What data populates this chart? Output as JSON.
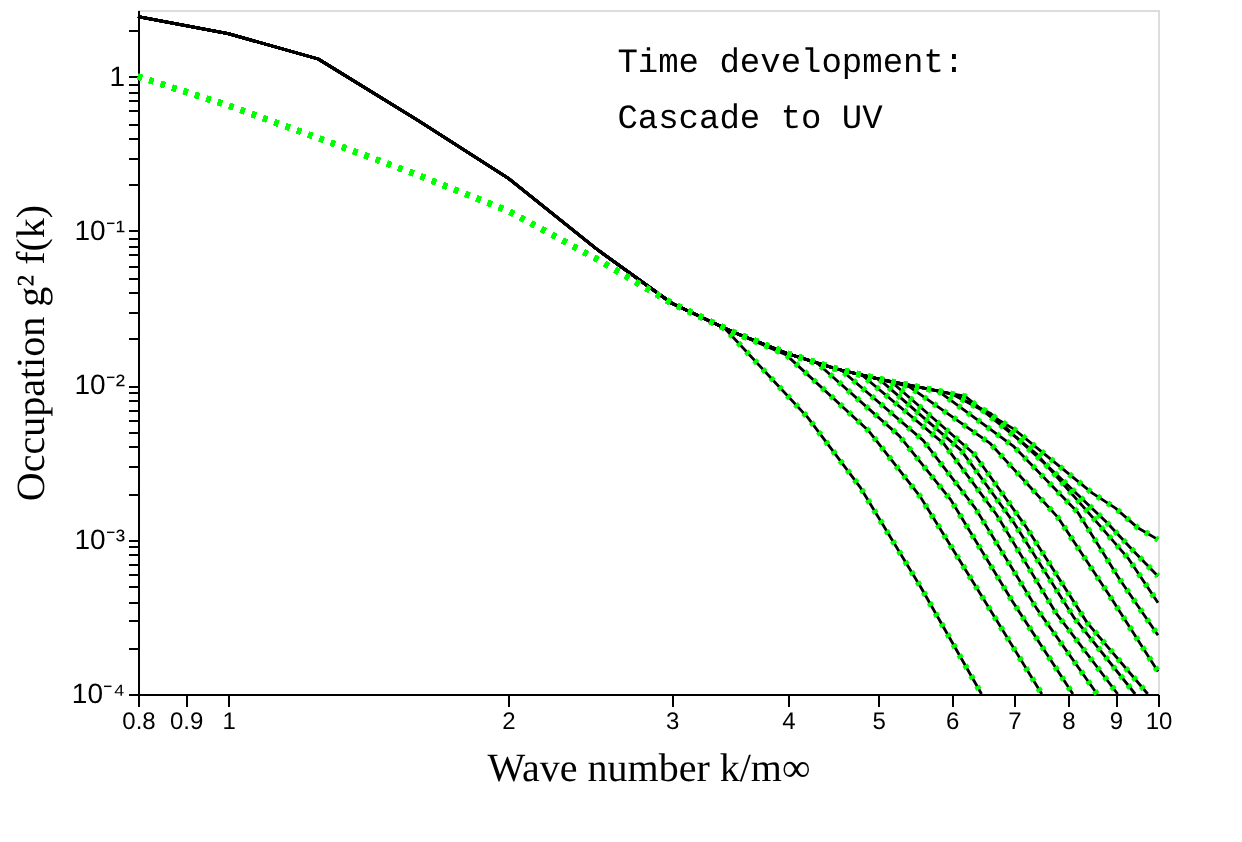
{
  "chart_data": {
    "type": "line",
    "xlabel": "Wave number k/m∞",
    "ylabel": "Occupation g² f(k)",
    "annotations": [
      "Time development:",
      "Cascade to UV"
    ],
    "log": "xy",
    "grid": false,
    "marker": "none",
    "xlim": [
      0.8,
      10
    ],
    "ylim": [
      0.0001,
      2.7
    ],
    "xticks": [
      0.8,
      0.9,
      1,
      2,
      3,
      4,
      5,
      6,
      7,
      8,
      9,
      10
    ],
    "yticks": [
      {
        "value": 0.0001,
        "label": "10⁻⁴"
      },
      {
        "value": 0.0002,
        "label": null
      },
      {
        "value": 0.0003,
        "label": null
      },
      {
        "value": 0.0004,
        "label": null
      },
      {
        "value": 0.0005,
        "label": null
      },
      {
        "value": 0.0006,
        "label": null
      },
      {
        "value": 0.0007,
        "label": null
      },
      {
        "value": 0.0008,
        "label": null
      },
      {
        "value": 0.0009,
        "label": null
      },
      {
        "value": 0.001,
        "label": "10⁻³"
      },
      {
        "value": 0.002,
        "label": null
      },
      {
        "value": 0.003,
        "label": null
      },
      {
        "value": 0.004,
        "label": null
      },
      {
        "value": 0.005,
        "label": null
      },
      {
        "value": 0.006,
        "label": null
      },
      {
        "value": 0.007,
        "label": null
      },
      {
        "value": 0.008,
        "label": null
      },
      {
        "value": 0.009,
        "label": null
      },
      {
        "value": 0.01,
        "label": "10⁻²"
      },
      {
        "value": 0.02,
        "label": null
      },
      {
        "value": 0.03,
        "label": null
      },
      {
        "value": 0.04,
        "label": null
      },
      {
        "value": 0.05,
        "label": null
      },
      {
        "value": 0.06,
        "label": null
      },
      {
        "value": 0.07,
        "label": null
      },
      {
        "value": 0.08,
        "label": null
      },
      {
        "value": 0.09,
        "label": null
      },
      {
        "value": 0.1,
        "label": "10⁻¹"
      },
      {
        "value": 0.2,
        "label": null
      },
      {
        "value": 0.3,
        "label": null
      },
      {
        "value": 0.4,
        "label": null
      },
      {
        "value": 0.5,
        "label": null
      },
      {
        "value": 0.6,
        "label": null
      },
      {
        "value": 0.7,
        "label": null
      },
      {
        "value": 0.8,
        "label": null
      },
      {
        "value": 0.9,
        "label": null
      },
      1,
      {
        "value": 2,
        "label": null
      }
    ],
    "series": [
      {
        "color": "#000000",
        "line_style": "solid",
        "x": [
          0.8,
          1,
          1.25,
          1.6,
          2,
          2.5,
          3,
          3.42,
          4.2,
          4.78,
          5.56,
          6.46
        ],
        "values": [
          2.45,
          1.9,
          1.3,
          0.52,
          0.22,
          0.075,
          0.034,
          0.0234,
          0.0062,
          0.0022,
          0.00049,
          0.0001
        ]
      },
      {
        "color": "#000000",
        "line_style": "solid",
        "x": [
          0.8,
          1,
          1.25,
          1.6,
          2,
          2.5,
          3,
          3.5,
          3.98,
          4.88,
          5.55,
          6.45,
          7.5
        ],
        "values": [
          2.45,
          1.9,
          1.3,
          0.52,
          0.22,
          0.075,
          0.034,
          0.022,
          0.0158,
          0.0051,
          0.0019,
          0.00044,
          0.0001
        ]
      },
      {
        "color": "#000000",
        "line_style": "solid",
        "x": [
          0.8,
          1,
          1.25,
          1.6,
          2,
          2.5,
          3,
          3.5,
          4,
          4.29,
          5.27,
          5.99,
          6.97,
          8.1
        ],
        "values": [
          2.45,
          1.9,
          1.3,
          0.52,
          0.22,
          0.075,
          0.034,
          0.022,
          0.016,
          0.0141,
          0.0047,
          0.0018,
          0.0004,
          0.0001
        ]
      },
      {
        "color": "#000000",
        "line_style": "solid",
        "x": [
          0.8,
          1,
          1.25,
          1.6,
          2,
          2.5,
          3,
          3.5,
          4,
          4.56,
          5.59,
          6.36,
          7.4,
          8.6
        ],
        "values": [
          2.45,
          1.9,
          1.3,
          0.52,
          0.22,
          0.075,
          0.034,
          0.022,
          0.016,
          0.0126,
          0.0044,
          0.0016,
          0.00036,
          0.0001
        ]
      },
      {
        "color": "#000000",
        "line_style": "solid",
        "x": [
          0.8,
          1,
          1.25,
          1.6,
          2,
          2.5,
          3,
          3.5,
          4,
          4.5,
          4.8,
          5.88,
          6.7,
          7.78,
          9.05
        ],
        "values": [
          2.45,
          1.9,
          1.3,
          0.52,
          0.22,
          0.075,
          0.034,
          0.022,
          0.016,
          0.0128,
          0.0117,
          0.0042,
          0.00146,
          0.00033,
          0.0001
        ]
      },
      {
        "color": "#000000",
        "line_style": "solid",
        "x": [
          0.8,
          1,
          1.25,
          1.6,
          2,
          2.5,
          3,
          3.5,
          4,
          4.5,
          5.01,
          6.14,
          6.99,
          8.13,
          9.45
        ],
        "values": [
          2.45,
          1.9,
          1.3,
          0.52,
          0.22,
          0.075,
          0.034,
          0.022,
          0.016,
          0.0128,
          0.011,
          0.0038,
          0.0013,
          0.00031,
          0.0001
        ]
      },
      {
        "color": "#000000",
        "line_style": "solid",
        "x": [
          0.8,
          1,
          1.25,
          1.6,
          2,
          2.5,
          3,
          3.5,
          4,
          4.5,
          5.17,
          6.34,
          7.22,
          8.39,
          9.75
        ],
        "values": [
          2.45,
          1.9,
          1.3,
          0.52,
          0.22,
          0.075,
          0.034,
          0.022,
          0.016,
          0.0128,
          0.0105,
          0.0036,
          0.0012,
          0.00029,
          0.0001
        ]
      },
      {
        "color": "#000000",
        "line_style": "solid",
        "x": [
          0.8,
          1,
          1.25,
          1.6,
          2,
          2.5,
          3,
          3.5,
          4,
          4.5,
          5,
          5.4,
          6.6,
          7.8,
          8.9,
          10
        ],
        "values": [
          2.45,
          1.9,
          1.3,
          0.52,
          0.22,
          0.075,
          0.034,
          0.022,
          0.016,
          0.0128,
          0.011,
          0.0098,
          0.0042,
          0.0014,
          0.00042,
          0.00014
        ]
      },
      {
        "color": "#000000",
        "line_style": "solid",
        "x": [
          0.8,
          1,
          1.25,
          1.6,
          2,
          2.5,
          3,
          3.5,
          4,
          4.5,
          5,
          5.5,
          5.8,
          7.0,
          8.2,
          9.1,
          10
        ],
        "values": [
          2.45,
          1.9,
          1.3,
          0.52,
          0.22,
          0.075,
          0.034,
          0.022,
          0.016,
          0.0128,
          0.011,
          0.0098,
          0.0092,
          0.004,
          0.0015,
          0.00055,
          0.00024
        ]
      },
      {
        "color": "#000000",
        "line_style": "solid",
        "x": [
          0.8,
          1,
          1.25,
          1.6,
          2,
          2.5,
          3,
          3.5,
          4,
          4.5,
          5,
          5.5,
          6,
          6.2,
          7.4,
          8.5,
          9.3,
          10
        ],
        "values": [
          2.45,
          1.9,
          1.3,
          0.52,
          0.22,
          0.075,
          0.034,
          0.022,
          0.016,
          0.0128,
          0.011,
          0.0098,
          0.0088,
          0.0085,
          0.0036,
          0.0014,
          0.00075,
          0.00039
        ]
      },
      {
        "color": "#000000",
        "line_style": "solid",
        "x": [
          0.8,
          1,
          1.25,
          1.6,
          2,
          2.5,
          3,
          3.5,
          4,
          4.5,
          5,
          5.5,
          6,
          6.6,
          7.8,
          8.8,
          9.4,
          10
        ],
        "values": [
          2.45,
          1.9,
          1.3,
          0.52,
          0.22,
          0.075,
          0.034,
          0.022,
          0.016,
          0.0128,
          0.011,
          0.0098,
          0.0088,
          0.0066,
          0.0026,
          0.0013,
          0.00085,
          0.00058
        ]
      },
      {
        "color": "#000000",
        "line_style": "solid",
        "x": [
          0.8,
          1,
          1.25,
          1.6,
          2,
          2.5,
          3,
          3.5,
          4,
          4.5,
          5,
          5.5,
          6,
          6.5,
          7,
          7.5,
          8,
          8.5,
          9,
          9.5,
          10
        ],
        "values": [
          2.45,
          1.9,
          1.3,
          0.52,
          0.22,
          0.075,
          0.034,
          0.022,
          0.016,
          0.0128,
          0.011,
          0.0098,
          0.0088,
          0.0068,
          0.0052,
          0.0037,
          0.0027,
          0.002,
          0.0016,
          0.0012,
          0.001
        ]
      },
      {
        "color": "#00ff00",
        "line_style": "dotted",
        "x": [
          0.8,
          1,
          1.25,
          1.6,
          2,
          2.5,
          3,
          3.42,
          4.2,
          4.78,
          5.56,
          6.46
        ],
        "values": [
          1.0,
          0.65,
          0.4,
          0.23,
          0.135,
          0.065,
          0.034,
          0.0234,
          0.0062,
          0.0022,
          0.00049,
          0.0001
        ]
      },
      {
        "color": "#00ff00",
        "line_style": "dotted",
        "x": [
          0.8,
          1,
          1.25,
          1.6,
          2,
          2.5,
          3,
          3.5,
          3.98,
          4.88,
          5.55,
          6.45,
          7.5
        ],
        "values": [
          1.0,
          0.65,
          0.4,
          0.23,
          0.135,
          0.065,
          0.034,
          0.022,
          0.0158,
          0.0051,
          0.0019,
          0.00044,
          0.0001
        ]
      },
      {
        "color": "#00ff00",
        "line_style": "dotted",
        "x": [
          0.8,
          1,
          1.25,
          1.6,
          2,
          2.5,
          3,
          3.5,
          4,
          4.29,
          5.27,
          5.99,
          6.97,
          8.1
        ],
        "values": [
          1.0,
          0.65,
          0.4,
          0.23,
          0.135,
          0.065,
          0.034,
          0.022,
          0.016,
          0.0141,
          0.0047,
          0.0018,
          0.0004,
          0.0001
        ]
      },
      {
        "color": "#00ff00",
        "line_style": "dotted",
        "x": [
          0.8,
          1,
          1.25,
          1.6,
          2,
          2.5,
          3,
          3.5,
          4,
          4.56,
          5.59,
          6.36,
          7.4,
          8.6
        ],
        "values": [
          1.0,
          0.65,
          0.4,
          0.23,
          0.135,
          0.065,
          0.034,
          0.022,
          0.016,
          0.0126,
          0.0044,
          0.0016,
          0.00036,
          0.0001
        ]
      },
      {
        "color": "#00ff00",
        "line_style": "dotted",
        "x": [
          0.8,
          1,
          1.25,
          1.6,
          2,
          2.5,
          3,
          3.5,
          4,
          4.5,
          4.8,
          5.88,
          6.7,
          7.78,
          9.05
        ],
        "values": [
          1.0,
          0.65,
          0.4,
          0.23,
          0.135,
          0.065,
          0.034,
          0.022,
          0.016,
          0.0128,
          0.0117,
          0.0042,
          0.00146,
          0.00033,
          0.0001
        ]
      },
      {
        "color": "#00ff00",
        "line_style": "dotted",
        "x": [
          0.8,
          1,
          1.25,
          1.6,
          2,
          2.5,
          3,
          3.5,
          4,
          4.5,
          5.01,
          6.14,
          6.99,
          8.13,
          9.45
        ],
        "values": [
          1.0,
          0.65,
          0.4,
          0.23,
          0.135,
          0.065,
          0.034,
          0.022,
          0.016,
          0.0128,
          0.011,
          0.0038,
          0.0013,
          0.00031,
          0.0001
        ]
      },
      {
        "color": "#00ff00",
        "line_style": "dotted",
        "x": [
          0.8,
          1,
          1.25,
          1.6,
          2,
          2.5,
          3,
          3.5,
          4,
          4.5,
          5.17,
          6.34,
          7.22,
          8.39,
          9.75
        ],
        "values": [
          1.0,
          0.65,
          0.4,
          0.23,
          0.135,
          0.065,
          0.034,
          0.022,
          0.016,
          0.0128,
          0.0105,
          0.0036,
          0.0012,
          0.00029,
          0.0001
        ]
      },
      {
        "color": "#00ff00",
        "line_style": "dotted",
        "x": [
          0.8,
          1,
          1.25,
          1.6,
          2,
          2.5,
          3,
          3.5,
          4,
          4.5,
          5,
          5.4,
          6.6,
          7.8,
          8.9,
          10
        ],
        "values": [
          1.0,
          0.65,
          0.4,
          0.23,
          0.135,
          0.065,
          0.034,
          0.022,
          0.016,
          0.0128,
          0.011,
          0.0098,
          0.0042,
          0.0014,
          0.00042,
          0.00014
        ]
      },
      {
        "color": "#00ff00",
        "line_style": "dotted",
        "x": [
          0.8,
          1,
          1.25,
          1.6,
          2,
          2.5,
          3,
          3.5,
          4,
          4.5,
          5,
          5.5,
          5.8,
          7.0,
          8.2,
          9.1,
          10
        ],
        "values": [
          1.0,
          0.65,
          0.4,
          0.23,
          0.135,
          0.065,
          0.034,
          0.022,
          0.016,
          0.0128,
          0.011,
          0.0098,
          0.0092,
          0.004,
          0.0015,
          0.00055,
          0.00024
        ]
      },
      {
        "color": "#00ff00",
        "line_style": "dotted",
        "x": [
          0.8,
          1,
          1.25,
          1.6,
          2,
          2.5,
          3,
          3.5,
          4,
          4.5,
          5,
          5.5,
          6,
          6.2,
          7.4,
          8.5,
          9.3,
          10
        ],
        "values": [
          1.0,
          0.65,
          0.4,
          0.23,
          0.135,
          0.065,
          0.034,
          0.022,
          0.016,
          0.0128,
          0.011,
          0.0098,
          0.0088,
          0.0085,
          0.0036,
          0.0014,
          0.00075,
          0.00039
        ]
      },
      {
        "color": "#00ff00",
        "line_style": "dotted",
        "x": [
          0.8,
          1,
          1.25,
          1.6,
          2,
          2.5,
          3,
          3.5,
          4,
          4.5,
          5,
          5.5,
          6,
          6.6,
          7.8,
          8.8,
          9.4,
          10
        ],
        "values": [
          1.0,
          0.65,
          0.4,
          0.23,
          0.135,
          0.065,
          0.034,
          0.022,
          0.016,
          0.0128,
          0.011,
          0.0098,
          0.0088,
          0.0066,
          0.0026,
          0.0013,
          0.00085,
          0.00058
        ]
      },
      {
        "color": "#00ff00",
        "line_style": "dotted",
        "x": [
          0.8,
          1,
          1.25,
          1.6,
          2,
          2.5,
          3,
          3.5,
          4,
          4.5,
          5,
          5.5,
          6,
          6.5,
          7,
          7.5,
          8,
          8.5,
          9,
          9.5,
          10
        ],
        "values": [
          1.0,
          0.65,
          0.4,
          0.23,
          0.135,
          0.065,
          0.034,
          0.022,
          0.016,
          0.0128,
          0.011,
          0.0098,
          0.0088,
          0.0068,
          0.0052,
          0.0037,
          0.0027,
          0.002,
          0.0016,
          0.0012,
          0.001
        ]
      }
    ]
  }
}
